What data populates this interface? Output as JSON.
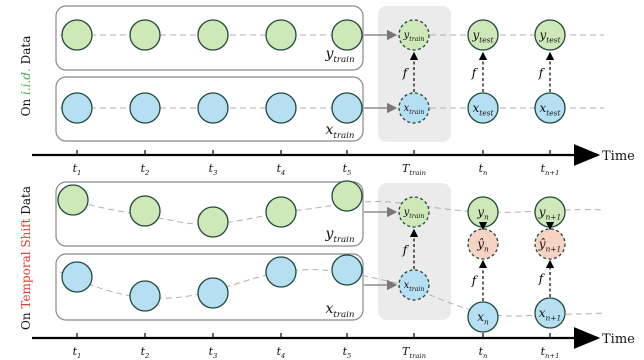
{
  "colors": {
    "green_fill": "#cfe8b8",
    "blue_fill": "#b7dff4",
    "pink_fill": "#f6d3c3",
    "node_stroke": "#1f4a3a",
    "box_stroke": "#777777",
    "dash": "#b0b0b0",
    "train_panel": "#ebebeb",
    "iid_green": "#43b04a",
    "shift_red": "#e23a2f"
  },
  "side_labels": {
    "top": {
      "prefix": "On ",
      "highlight": "i.i.d.",
      "suffix": " Data"
    },
    "bottom": {
      "prefix": "On ",
      "highlight": "Temporal Shift",
      "suffix": " Data"
    }
  },
  "axis": {
    "label": "Time",
    "ticks": [
      {
        "base": "t",
        "sub": "1"
      },
      {
        "base": "t",
        "sub": "2"
      },
      {
        "base": "t",
        "sub": "3"
      },
      {
        "base": "t",
        "sub": "4"
      },
      {
        "base": "t",
        "sub": "5"
      },
      {
        "base": "T",
        "sub": "train"
      },
      {
        "base": "t",
        "sub": "n"
      },
      {
        "base": "t",
        "sub": "n+1"
      }
    ]
  },
  "top": {
    "y_box_label": {
      "base": "y",
      "sub": "train"
    },
    "x_box_label": {
      "base": "x",
      "sub": "train"
    },
    "train_nodes": {
      "y": {
        "base": "y",
        "sub": "train"
      },
      "x": {
        "base": "x",
        "sub": "train"
      }
    },
    "test_cols": [
      {
        "y": {
          "base": "y",
          "sub": "test"
        },
        "x": {
          "base": "x",
          "sub": "test"
        },
        "f": "f"
      },
      {
        "y": {
          "base": "y",
          "sub": "test"
        },
        "x": {
          "base": "x",
          "sub": "test"
        },
        "f": "f"
      }
    ],
    "f_train": "f"
  },
  "bottom": {
    "y_box_label": {
      "base": "y",
      "sub": "train"
    },
    "x_box_label": {
      "base": "x",
      "sub": "train"
    },
    "train_nodes": {
      "y": {
        "base": "y",
        "sub": "train"
      },
      "x": {
        "base": "x",
        "sub": "train"
      }
    },
    "test_cols": [
      {
        "y": {
          "base": "y",
          "sub": "n"
        },
        "yhat": {
          "base": "ŷ",
          "sub": "n"
        },
        "x": {
          "base": "x",
          "sub": "n"
        },
        "f": "f"
      },
      {
        "y": {
          "base": "y",
          "sub": "n+1"
        },
        "yhat": {
          "base": "ŷ",
          "sub": "n+1"
        },
        "x": {
          "base": "x",
          "sub": "n+1"
        },
        "f": "f"
      }
    ],
    "f_train": "f"
  }
}
